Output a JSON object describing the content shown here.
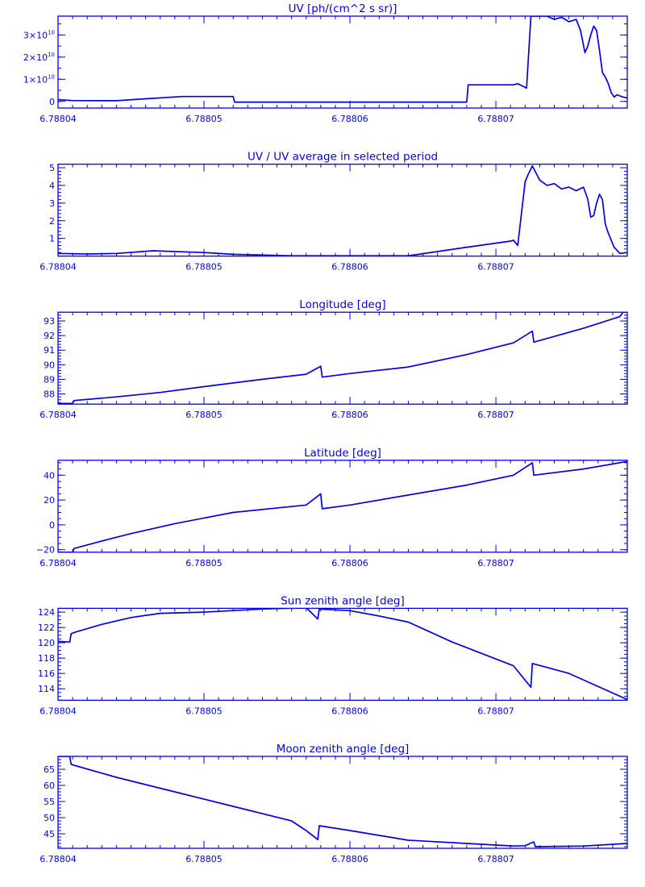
{
  "chart_data": [
    {
      "type": "line",
      "title": "UV [ph/(cm^2 s sr)]",
      "xlim": [
        6.78804,
        6.788079
      ],
      "ylim": [
        -3000000000.0,
        38500000000.0
      ],
      "x_ticks": [
        "6.78804",
        "6.78805",
        "6.78806",
        "6.78807"
      ],
      "y_ticks": [
        {
          "value": 0,
          "label": "0",
          "exp": ""
        },
        {
          "value": 10000000000.0,
          "label": "1×10",
          "exp": "10"
        },
        {
          "value": 20000000000.0,
          "label": "2×10",
          "exp": "10"
        },
        {
          "value": 30000000000.0,
          "label": "3×10",
          "exp": "10"
        }
      ],
      "y_minor": 5000000000.0,
      "series": [
        {
          "x": [
            6.78804,
            6.788041,
            6.788043,
            6.788044,
            6.788046,
            6.7880485,
            6.788052,
            6.7880521,
            6.788056,
            6.78806,
            6.788064,
            6.788068,
            6.7880681,
            6.7880712,
            6.7880715,
            6.7880718,
            6.7880721,
            6.7880724,
            6.7880725,
            6.7880735,
            6.788074,
            6.7880745,
            6.788075,
            6.7880755,
            6.7880758,
            6.7880761,
            6.7880763,
            6.7880765,
            6.7880767,
            6.7880769,
            6.7880771,
            6.7880773,
            6.7880775,
            6.7880777,
            6.7880779,
            6.7880781,
            6.7880783,
            6.7880787,
            6.788079
          ],
          "y": [
            800000000.0,
            400000000.0,
            300000000.0,
            300000000.0,
            1200000000.0,
            2200000000.0,
            2200000000.0,
            -300000000.0,
            -300000000.0,
            -300000000.0,
            -300000000.0,
            -300000000.0,
            7500000000.0,
            7500000000.0,
            8000000000.0,
            7000000000.0,
            6000000000.0,
            38500000000.0,
            38500000000.0,
            38500000000.0,
            37000000000.0,
            38000000000.0,
            36000000000.0,
            37000000000.0,
            32000000000.0,
            22000000000.0,
            25000000000.0,
            30000000000.0,
            34000000000.0,
            32000000000.0,
            23000000000.0,
            13000000000.0,
            11000000000.0,
            8000000000.0,
            4000000000.0,
            2000000000.0,
            3000000000.0,
            2000000000.0,
            1500000000.0
          ]
        }
      ]
    },
    {
      "type": "line",
      "title": "UV / UV average in selected period",
      "xlim": [
        6.78804,
        6.788079
      ],
      "ylim": [
        0,
        5.2
      ],
      "x_ticks": [
        "6.78804",
        "6.78805",
        "6.78806",
        "6.78807"
      ],
      "y_ticks": [
        {
          "value": 1,
          "label": "1",
          "exp": ""
        },
        {
          "value": 2,
          "label": "2",
          "exp": ""
        },
        {
          "value": 3,
          "label": "3",
          "exp": ""
        },
        {
          "value": 4,
          "label": "4",
          "exp": ""
        },
        {
          "value": 5,
          "label": "5",
          "exp": ""
        }
      ],
      "y_minor": 0.2,
      "series": [
        {
          "x": [
            6.78804,
            6.788042,
            6.788044,
            6.7880465,
            6.78805,
            6.788052,
            6.788056,
            6.78806,
            6.788064,
            6.788068,
            6.788071,
            6.7880712,
            6.7880715,
            6.788072,
            6.7880722,
            6.7880725,
            6.788073,
            6.7880735,
            6.788074,
            6.7880745,
            6.788075,
            6.7880755,
            6.788076,
            6.7880763,
            6.7880765,
            6.7880767,
            6.7880769,
            6.7880771,
            6.7880773,
            6.7880775,
            6.7880777,
            6.7880779,
            6.7880781,
            6.7880785,
            6.788079
          ],
          "y": [
            0.15,
            0.12,
            0.15,
            0.3,
            0.2,
            0.1,
            0.02,
            0.02,
            0.02,
            0.5,
            0.85,
            0.9,
            0.6,
            4.2,
            4.6,
            5.1,
            4.3,
            4.0,
            4.1,
            3.8,
            3.9,
            3.7,
            3.9,
            3.2,
            2.2,
            2.3,
            3.0,
            3.5,
            3.2,
            1.8,
            1.3,
            0.9,
            0.5,
            0.15,
            0.2
          ]
        }
      ]
    },
    {
      "type": "line",
      "title": "Longitude [deg]",
      "xlim": [
        6.78804,
        6.788079
      ],
      "ylim": [
        87.3,
        93.6
      ],
      "x_ticks": [
        "6.78804",
        "6.78805",
        "6.78806",
        "6.78807"
      ],
      "y_ticks": [
        {
          "value": 88,
          "label": "88",
          "exp": ""
        },
        {
          "value": 89,
          "label": "89",
          "exp": ""
        },
        {
          "value": 90,
          "label": "90",
          "exp": ""
        },
        {
          "value": 91,
          "label": "91",
          "exp": ""
        },
        {
          "value": 92,
          "label": "92",
          "exp": ""
        },
        {
          "value": 93,
          "label": "93",
          "exp": ""
        }
      ],
      "y_minor": 0.2,
      "series": [
        {
          "x": [
            6.78804,
            6.788041,
            6.7880411,
            6.788044,
            6.788047,
            6.78805,
            6.788054,
            6.788057,
            6.788058,
            6.7880581,
            6.78806,
            6.788064,
            6.788068,
            6.7880712,
            6.7880725,
            6.7880726,
            6.788076,
            6.7880785,
            6.7880787,
            6.788079
          ],
          "y": [
            87.35,
            87.35,
            87.55,
            87.8,
            88.1,
            88.5,
            89.0,
            89.35,
            89.9,
            89.15,
            89.4,
            89.85,
            90.7,
            91.5,
            92.3,
            91.55,
            92.5,
            93.3,
            93.6,
            93.6
          ]
        }
      ]
    },
    {
      "type": "line",
      "title": "Latitude [deg]",
      "xlim": [
        6.78804,
        6.788079
      ],
      "ylim": [
        -22,
        52
      ],
      "x_ticks": [
        "6.78804",
        "6.78805",
        "6.78806",
        "6.78807"
      ],
      "y_ticks": [
        {
          "value": -20,
          "label": "−20",
          "exp": ""
        },
        {
          "value": 0,
          "label": "0",
          "exp": ""
        },
        {
          "value": 20,
          "label": "20",
          "exp": ""
        },
        {
          "value": 40,
          "label": "40",
          "exp": ""
        }
      ],
      "y_minor": 5,
      "series": [
        {
          "x": [
            6.78804,
            6.788041,
            6.7880411,
            6.788043,
            6.788045,
            6.788048,
            6.788052,
            6.788057,
            6.788058,
            6.7880581,
            6.78806,
            6.788064,
            6.788068,
            6.7880712,
            6.7880725,
            6.7880726,
            6.788076,
            6.788079
          ],
          "y": [
            -22,
            -22,
            -19,
            -13,
            -7,
            1,
            10,
            16,
            25,
            13,
            16,
            24,
            32,
            40,
            50,
            40,
            45,
            51
          ]
        }
      ]
    },
    {
      "type": "line",
      "title": "Sun zenith angle [deg]",
      "xlim": [
        6.78804,
        6.788079
      ],
      "ylim": [
        112.5,
        124.5
      ],
      "x_ticks": [
        "6.78804",
        "6.78805",
        "6.78806",
        "6.78807"
      ],
      "y_ticks": [
        {
          "value": 114,
          "label": "114",
          "exp": ""
        },
        {
          "value": 116,
          "label": "116",
          "exp": ""
        },
        {
          "value": 118,
          "label": "118",
          "exp": ""
        },
        {
          "value": 120,
          "label": "120",
          "exp": ""
        },
        {
          "value": 122,
          "label": "122",
          "exp": ""
        },
        {
          "value": 124,
          "label": "124",
          "exp": ""
        }
      ],
      "y_minor": 0.5,
      "series": [
        {
          "x": [
            6.78804,
            6.7880408,
            6.7880409,
            6.7880412,
            6.788043,
            6.788045,
            6.788047,
            6.78805,
            6.788054,
            6.788057,
            6.7880578,
            6.7880579,
            6.78806,
            6.788062,
            6.788064,
            6.788067,
            6.7880712,
            6.7880724,
            6.7880725,
            6.788075,
            6.788079
          ],
          "y": [
            120.2,
            120.1,
            121.2,
            121.4,
            122.4,
            123.3,
            123.85,
            124.0,
            124.4,
            124.6,
            123.1,
            124.4,
            124.2,
            123.5,
            122.7,
            120.1,
            117.0,
            114.2,
            117.3,
            116.0,
            112.6
          ]
        }
      ]
    },
    {
      "type": "line",
      "title": "Moon zenith angle [deg]",
      "xlim": [
        6.78804,
        6.788079
      ],
      "ylim": [
        40.5,
        69
      ],
      "x_ticks": [
        "6.78804",
        "6.78805",
        "6.78806",
        "6.78807"
      ],
      "y_ticks": [
        {
          "value": 45,
          "label": "45",
          "exp": ""
        },
        {
          "value": 50,
          "label": "50",
          "exp": ""
        },
        {
          "value": 55,
          "label": "55",
          "exp": ""
        },
        {
          "value": 60,
          "label": "60",
          "exp": ""
        },
        {
          "value": 65,
          "label": "65",
          "exp": ""
        }
      ],
      "y_minor": 1,
      "series": [
        {
          "x": [
            6.78804,
            6.7880408,
            6.7880409,
            6.788044,
            6.788048,
            6.788052,
            6.788056,
            6.788057,
            6.7880578,
            6.7880579,
            6.78806,
            6.788064,
            6.788068,
            6.7880712,
            6.788072,
            6.7880726,
            6.7880727,
            6.788076,
            6.788079
          ],
          "y": [
            69,
            69,
            66.5,
            62.5,
            58,
            53.5,
            49,
            46,
            43.2,
            47.5,
            46,
            43,
            42,
            41.2,
            41.3,
            42.5,
            41.0,
            41.2,
            42.0
          ]
        }
      ]
    }
  ]
}
